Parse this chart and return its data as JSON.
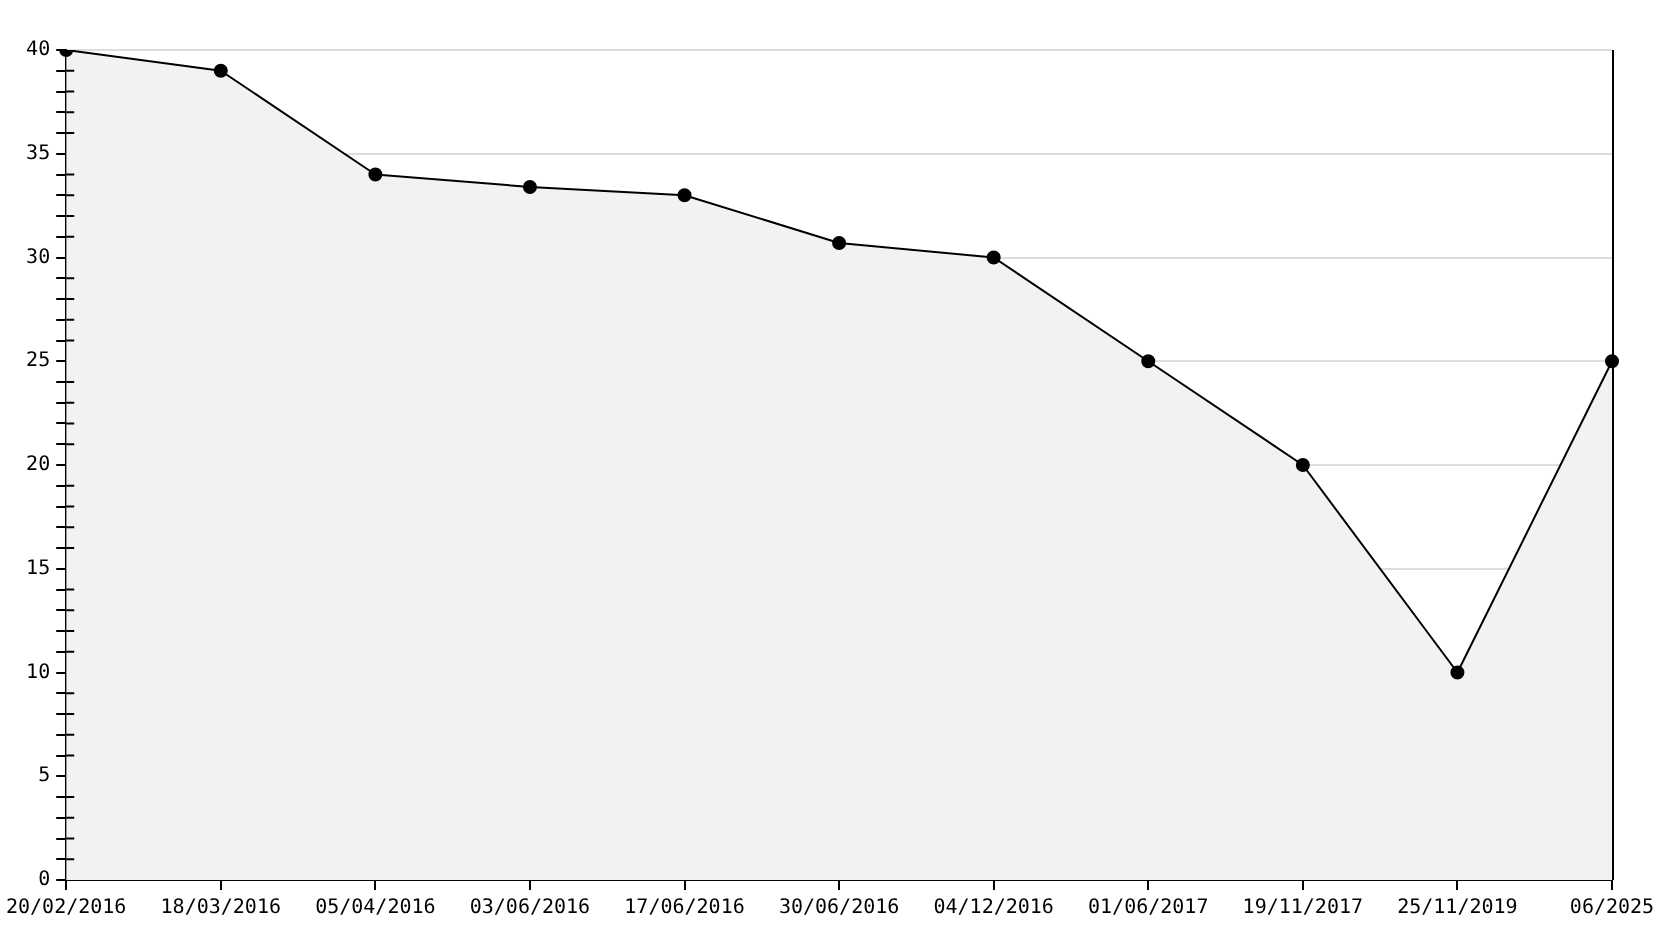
{
  "chart_data": {
    "type": "area",
    "categories": [
      "20/02/2016",
      "18/03/2016",
      "05/04/2016",
      "03/06/2016",
      "17/06/2016",
      "30/06/2016",
      "04/12/2016",
      "01/06/2017",
      "19/11/2017",
      "25/11/2019",
      "06/2025"
    ],
    "series": [
      {
        "color": "#000000",
        "values": [
          40,
          39,
          34,
          33.4,
          33,
          30.7,
          30,
          25,
          20,
          10,
          25
        ]
      }
    ],
    "ylim": [
      0,
      40
    ],
    "yticks": [
      0,
      {
        "value": 1,
        "label": null
      },
      {
        "value": 2,
        "label": null
      },
      {
        "value": 3,
        "label": null
      },
      {
        "value": 4,
        "label": null
      },
      5,
      {
        "value": 6,
        "label": null
      },
      {
        "value": 7,
        "label": null
      },
      {
        "value": 8,
        "label": null
      },
      {
        "value": 9,
        "label": null
      },
      10,
      {
        "value": 11,
        "label": null
      },
      {
        "value": 12,
        "label": null
      },
      {
        "value": 13,
        "label": null
      },
      {
        "value": 14,
        "label": null
      },
      15,
      {
        "value": 16,
        "label": null
      },
      {
        "value": 17,
        "label": null
      },
      {
        "value": 18,
        "label": null
      },
      {
        "value": 19,
        "label": null
      },
      20,
      {
        "value": 21,
        "label": null
      },
      {
        "value": 22,
        "label": null
      },
      {
        "value": 23,
        "label": null
      },
      {
        "value": 24,
        "label": null
      },
      25,
      {
        "value": 26,
        "label": null
      },
      {
        "value": 27,
        "label": null
      },
      {
        "value": 28,
        "label": null
      },
      {
        "value": 29,
        "label": null
      },
      30,
      {
        "value": 31,
        "label": null
      },
      {
        "value": 32,
        "label": null
      },
      {
        "value": 33,
        "label": null
      },
      {
        "value": 34,
        "label": null
      },
      35,
      {
        "value": 36,
        "label": null
      },
      {
        "value": 37,
        "label": null
      },
      {
        "value": 38,
        "label": null
      },
      {
        "value": 39,
        "label": null
      },
      40
    ],
    "grid": "y",
    "marker": "circle",
    "line_style": "solid"
  }
}
